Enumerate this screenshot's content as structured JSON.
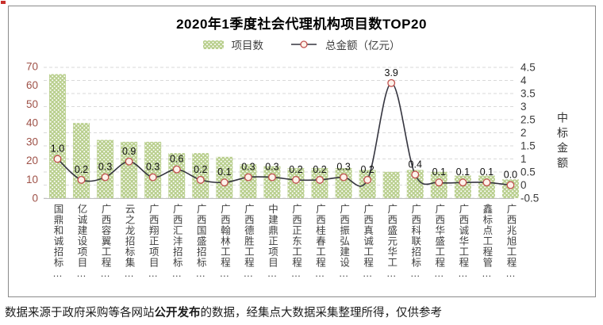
{
  "footer": {
    "prefix": "数据来源于政府采购等各网站",
    "bold": "公开发布",
    "suffix": "的数据，经集点大数据采集整理所得，仅供参考"
  },
  "colors": {
    "bar_fill": "#b9cf8e",
    "bar_dot": "#ffffff",
    "line": "#35353f",
    "marker_stroke": "#c0504d",
    "marker_fill": "#fdf2ea",
    "left_tick_text": "#9e5147",
    "right_tick_text": "#3a3a3a",
    "data_label_text": "#101010",
    "grid": "#d9d9d9",
    "baseline": "#bfbfbf",
    "accent_red": "#c9302c"
  },
  "chart_data": {
    "type": "bar",
    "subtype": "bar+line combo, dual axis",
    "title": "2020年1季度社会代理机构项目数TOP20",
    "legend": [
      {
        "label": "项目数",
        "marker": "bar"
      },
      {
        "label": "总金额（亿元）",
        "marker": "line-circle"
      }
    ],
    "legend_position": "top",
    "grid": true,
    "categories": [
      "国鼎和诚招标…",
      "亿诚建设项目…",
      "广西容翼工程…",
      "云之龙招标集…",
      "广西翔正项目…",
      "广西汇沣招标…",
      "广西国盛招标…",
      "广西翰林工程…",
      "广西德胜工程…",
      "中建鼎正项目…",
      "广西正东工程…",
      "广西桂春工程…",
      "广西振弘建设…",
      "广西真诚工程…",
      "广西盛元华工…",
      "广西科联招标…",
      "广西华盛工程…",
      "广西诚华工程…",
      "鑫标点工程管…",
      "广西兆旭工程…"
    ],
    "series": [
      {
        "name": "项目数",
        "type": "bar",
        "axis": "left",
        "values": [
          66,
          40,
          31,
          30,
          30,
          24,
          24,
          22,
          18,
          17,
          16,
          16,
          16,
          15,
          14,
          15,
          14,
          12,
          12,
          10
        ]
      },
      {
        "name": "总金额（亿元）",
        "type": "line",
        "axis": "right",
        "values": [
          1.0,
          0.2,
          0.3,
          0.9,
          0.3,
          0.6,
          0.2,
          0.1,
          0.3,
          0.3,
          0.2,
          0.2,
          0.3,
          0.2,
          3.9,
          0.4,
          0.1,
          0.1,
          0.1,
          0.0
        ],
        "labels": [
          "1.0",
          "0.2",
          "0.3",
          "0.9",
          "0.3",
          "0.6",
          "0.2",
          "0.1",
          "0.3",
          "0.3",
          "0.2",
          "0.2",
          "0.3",
          "0.2",
          "3.9",
          "0.4",
          "0.1",
          "0.1",
          "0.1",
          "0.0"
        ]
      }
    ],
    "left_axis": {
      "min": 0,
      "max": 70,
      "step": 10,
      "ticks": [
        "70",
        "60",
        "50",
        "40",
        "30",
        "20",
        "10",
        "0"
      ]
    },
    "right_axis": {
      "min": -0.5,
      "max": 4.5,
      "step": 0.5,
      "title": "中标金额",
      "ticks": [
        "4.5",
        "4",
        "3.5",
        "3",
        "2.5",
        "2",
        "1.5",
        "1",
        "0.5",
        "0",
        "-0.5"
      ]
    }
  }
}
